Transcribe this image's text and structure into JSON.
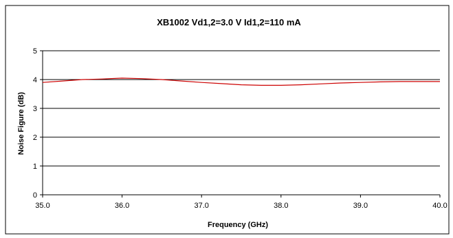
{
  "chart_data": {
    "type": "line",
    "title": "XB1002  Vd1,2=3.0 V  Id1,2=110 mA",
    "xlabel": "Frequency (GHz)",
    "ylabel": "Noise Figure (dB)",
    "xlim": [
      35.0,
      40.0
    ],
    "ylim": [
      0,
      5
    ],
    "x_ticks": [
      "35.0",
      "36.0",
      "37.0",
      "38.0",
      "39.0",
      "40.0"
    ],
    "y_ticks": [
      "0",
      "1",
      "2",
      "3",
      "4",
      "5"
    ],
    "grid": "horizontal",
    "legend": "none",
    "line_color": "#cc0000",
    "series": [
      {
        "x": [
          35.0,
          35.25,
          35.5,
          35.75,
          36.0,
          36.25,
          36.5,
          36.75,
          37.0,
          37.25,
          37.5,
          37.75,
          38.0,
          38.25,
          38.5,
          38.75,
          39.0,
          39.25,
          39.5,
          39.75,
          40.0
        ],
        "values": [
          3.9,
          3.95,
          4.0,
          4.02,
          4.05,
          4.03,
          4.0,
          3.95,
          3.9,
          3.86,
          3.82,
          3.8,
          3.8,
          3.82,
          3.85,
          3.88,
          3.9,
          3.92,
          3.93,
          3.93,
          3.93
        ]
      }
    ]
  }
}
